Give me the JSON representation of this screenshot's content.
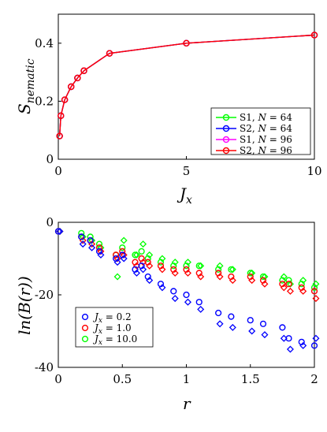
{
  "chart_data": [
    {
      "type": "line",
      "xlabel": "J_x",
      "ylabel": "S_nematic",
      "xlim": [
        0,
        10
      ],
      "ylim": [
        0,
        0.5
      ],
      "xticks": [
        "0",
        "5",
        "10"
      ],
      "yticks": [
        "0",
        "0.2",
        "0.4"
      ],
      "grid": false,
      "legend_position": "bottom-right",
      "x": [
        0.05,
        0.1,
        0.25,
        0.5,
        0.75,
        1,
        2,
        5,
        10
      ],
      "series": [
        {
          "name": "S1, N = 64",
          "color": "#00ff00",
          "marker": "circle",
          "values": [
            0.08,
            0.15,
            0.205,
            0.25,
            0.28,
            0.305,
            0.365,
            0.4,
            0.428
          ]
        },
        {
          "name": "S2, N = 64",
          "color": "#0000ff",
          "marker": "circle",
          "values": [
            0.08,
            0.15,
            0.205,
            0.25,
            0.28,
            0.305,
            0.365,
            0.4,
            0.428
          ]
        },
        {
          "name": "S1, N = 96",
          "color": "#ff00ff",
          "marker": "circle",
          "values": [
            0.08,
            0.15,
            0.205,
            0.25,
            0.28,
            0.305,
            0.365,
            0.4,
            0.428
          ]
        },
        {
          "name": "S2, N = 96",
          "color": "#ff0000",
          "marker": "circle",
          "values": [
            0.08,
            0.15,
            0.205,
            0.25,
            0.28,
            0.305,
            0.365,
            0.4,
            0.428
          ]
        }
      ]
    },
    {
      "type": "scatter",
      "xlabel": "r",
      "ylabel": "ln(B(r))",
      "xlim": [
        0,
        2
      ],
      "ylim": [
        -40,
        0
      ],
      "xticks": [
        "0",
        "0.5",
        "1",
        "1.5",
        "2"
      ],
      "yticks": [
        "0",
        "-20",
        "-40"
      ],
      "grid": false,
      "legend_position": "bottom-left",
      "r": [
        0,
        0.18,
        0.25,
        0.32,
        0.45,
        0.5,
        0.6,
        0.65,
        0.7,
        0.8,
        0.9,
        1.0,
        1.1,
        1.25,
        1.35,
        1.5,
        1.6,
        1.75,
        1.8,
        1.9,
        2.0
      ],
      "series": [
        {
          "name": "J_x = 0.2",
          "color": "#0000ff",
          "circles": [
            -2.5,
            -4,
            -5,
            -8,
            -10,
            -9,
            -13,
            -12,
            -15,
            -17,
            -19,
            -20,
            -22,
            -25,
            -26,
            -27,
            -28,
            -29,
            -32,
            -33,
            -34
          ],
          "diamonds": [
            -2.5,
            -6,
            -7,
            -9,
            -11,
            -10,
            -14,
            -13,
            -16,
            -18,
            -21,
            -22,
            -24,
            -28,
            -29,
            -30,
            -31,
            -32,
            -35,
            -34,
            -32
          ]
        },
        {
          "name": "J_x = 1.0",
          "color": "#ff0000",
          "circles": [
            -2.5,
            -4,
            -5,
            -7,
            -9,
            -8,
            -11,
            -10,
            -11,
            -12,
            -13,
            -13,
            -14,
            -14,
            -15,
            -15,
            -16,
            -17,
            -17,
            -18,
            -19
          ],
          "diamonds": [
            -2.5,
            -5,
            -6,
            -8,
            -10,
            -9,
            -12,
            -11,
            -12,
            -13,
            -14,
            -14,
            -15,
            -15,
            -16,
            -16,
            -17,
            -18,
            -19,
            -19,
            -21
          ]
        },
        {
          "name": "J_x = 10.0",
          "color": "#00ff00",
          "circles": [
            -2.5,
            -3,
            -4,
            -6,
            -9,
            -7,
            -9,
            -8,
            -10,
            -11,
            -12,
            -12,
            -12,
            -13,
            -13,
            -14,
            -15,
            -16,
            -16,
            -17,
            -18
          ],
          "diamonds": [
            -2.5,
            -4,
            -5,
            -7,
            -15,
            -5,
            -9,
            -6,
            -9,
            -10,
            -11,
            -11,
            -12,
            -12,
            -13,
            -14,
            -15,
            -15,
            -17,
            -16,
            -17
          ]
        }
      ]
    }
  ]
}
